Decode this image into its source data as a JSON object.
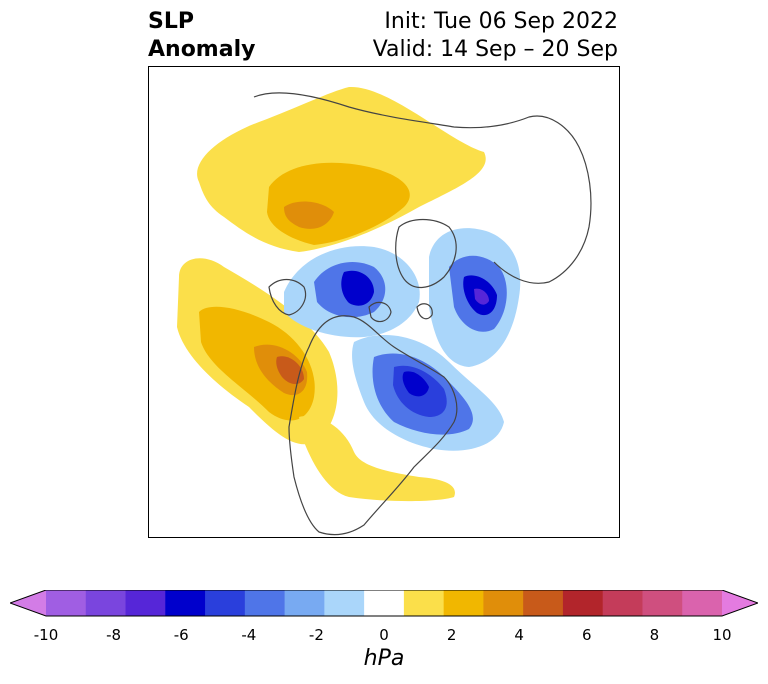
{
  "header": {
    "title_line1": "SLP",
    "title_line2": "Anomaly",
    "init_label": "Init: Tue 06 Sep 2022",
    "valid_label": "Valid: 14 Sep – 20 Sep"
  },
  "legend": {
    "unit": "hPa",
    "tick_labels": [
      "-10",
      "-8",
      "-6",
      "-4",
      "-2",
      "0",
      "2",
      "4",
      "6",
      "8",
      "10"
    ],
    "colors": [
      "#d37ce6",
      "#a05ee3",
      "#7a45de",
      "#5626d8",
      "#0000cc",
      "#2a3fdc",
      "#4f75e8",
      "#78aaf2",
      "#aad6fa",
      "#ffffff",
      "#fbdf4a",
      "#f1b700",
      "#e08e0a",
      "#c85a1a",
      "#b2252b",
      "#c43c5a",
      "#cf4f7f",
      "#da63ad",
      "#e47be0"
    ]
  },
  "map": {
    "projection": "north-polar-stereographic",
    "anomaly_features": [
      {
        "name": "positive anomaly, NE Pacific",
        "sign": "positive"
      },
      {
        "name": "positive anomaly, Siberia",
        "sign": "positive"
      },
      {
        "name": "positive anomaly, US",
        "sign": "positive"
      },
      {
        "name": "negative anomaly, Arctic/Canada",
        "sign": "negative"
      },
      {
        "name": "negative anomaly, Scandinavia/Greenland Sea",
        "sign": "negative"
      },
      {
        "name": "negative anomaly, Hudson Bay/Labrador",
        "sign": "negative"
      }
    ]
  }
}
